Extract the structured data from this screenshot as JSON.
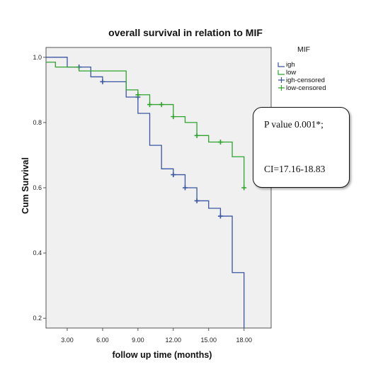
{
  "chart_data": {
    "type": "line",
    "title": "overall survival in relation to MIF",
    "xlabel": "follow up time (months)",
    "ylabel": "Cum Survival",
    "x_ticks": [
      "3.00",
      "6.00",
      "9.00",
      "12.00",
      "15.00",
      "18.00"
    ],
    "x_tick_values": [
      3,
      6,
      9,
      12,
      15,
      18
    ],
    "y_ticks": [
      "1.0",
      "0.8",
      "0.6",
      "0.4",
      "0.2"
    ],
    "y_tick_values": [
      1.0,
      0.8,
      0.6,
      0.4,
      0.2
    ],
    "xlim": [
      1.2,
      20.3
    ],
    "ylim": [
      0.17,
      1.03
    ],
    "grid": false,
    "legend": {
      "title": "MIF",
      "position": "right",
      "entries": [
        {
          "label": "igh",
          "color": "#3a55a2",
          "kind": "line"
        },
        {
          "label": "low",
          "color": "#2ea42e",
          "kind": "line"
        },
        {
          "label": "igh-censored",
          "color": "#3a55a2",
          "kind": "censor"
        },
        {
          "label": "low-censored",
          "color": "#2ea42e",
          "kind": "censor"
        }
      ]
    },
    "series": [
      {
        "name": "igh",
        "color": "#3a55a2",
        "steps": [
          [
            0,
            1.0
          ],
          [
            3,
            0.97
          ],
          [
            5,
            0.94
          ],
          [
            6,
            0.925
          ],
          [
            8,
            0.878
          ],
          [
            9,
            0.828
          ],
          [
            10,
            0.73
          ],
          [
            11,
            0.658
          ],
          [
            12,
            0.64
          ],
          [
            13,
            0.6
          ],
          [
            14,
            0.56
          ],
          [
            15,
            0.537
          ],
          [
            16,
            0.513
          ],
          [
            17,
            0.34
          ],
          [
            18,
            0.16
          ]
        ],
        "end_x": 18,
        "censored": [
          [
            4,
            0.97
          ],
          [
            6,
            0.925
          ],
          [
            9,
            0.878
          ],
          [
            12,
            0.64
          ],
          [
            13,
            0.6
          ],
          [
            14,
            0.56
          ],
          [
            16,
            0.513
          ]
        ]
      },
      {
        "name": "low",
        "color": "#2ea42e",
        "steps": [
          [
            0,
            0.985
          ],
          [
            2,
            0.97
          ],
          [
            4,
            0.958
          ],
          [
            8,
            0.9
          ],
          [
            9,
            0.885
          ],
          [
            10,
            0.855
          ],
          [
            12,
            0.818
          ],
          [
            13,
            0.8
          ],
          [
            14,
            0.76
          ],
          [
            15,
            0.74
          ],
          [
            17,
            0.695
          ],
          [
            18,
            0.6
          ]
        ],
        "end_x": 18,
        "censored": [
          [
            9,
            0.885
          ],
          [
            10,
            0.855
          ],
          [
            11,
            0.855
          ],
          [
            12,
            0.818
          ],
          [
            14,
            0.76
          ],
          [
            16,
            0.74
          ],
          [
            18,
            0.6
          ]
        ]
      }
    ]
  },
  "annotation": {
    "pvalue": "P value 0.001*;",
    "ci": "CI=17.16-18.83"
  }
}
